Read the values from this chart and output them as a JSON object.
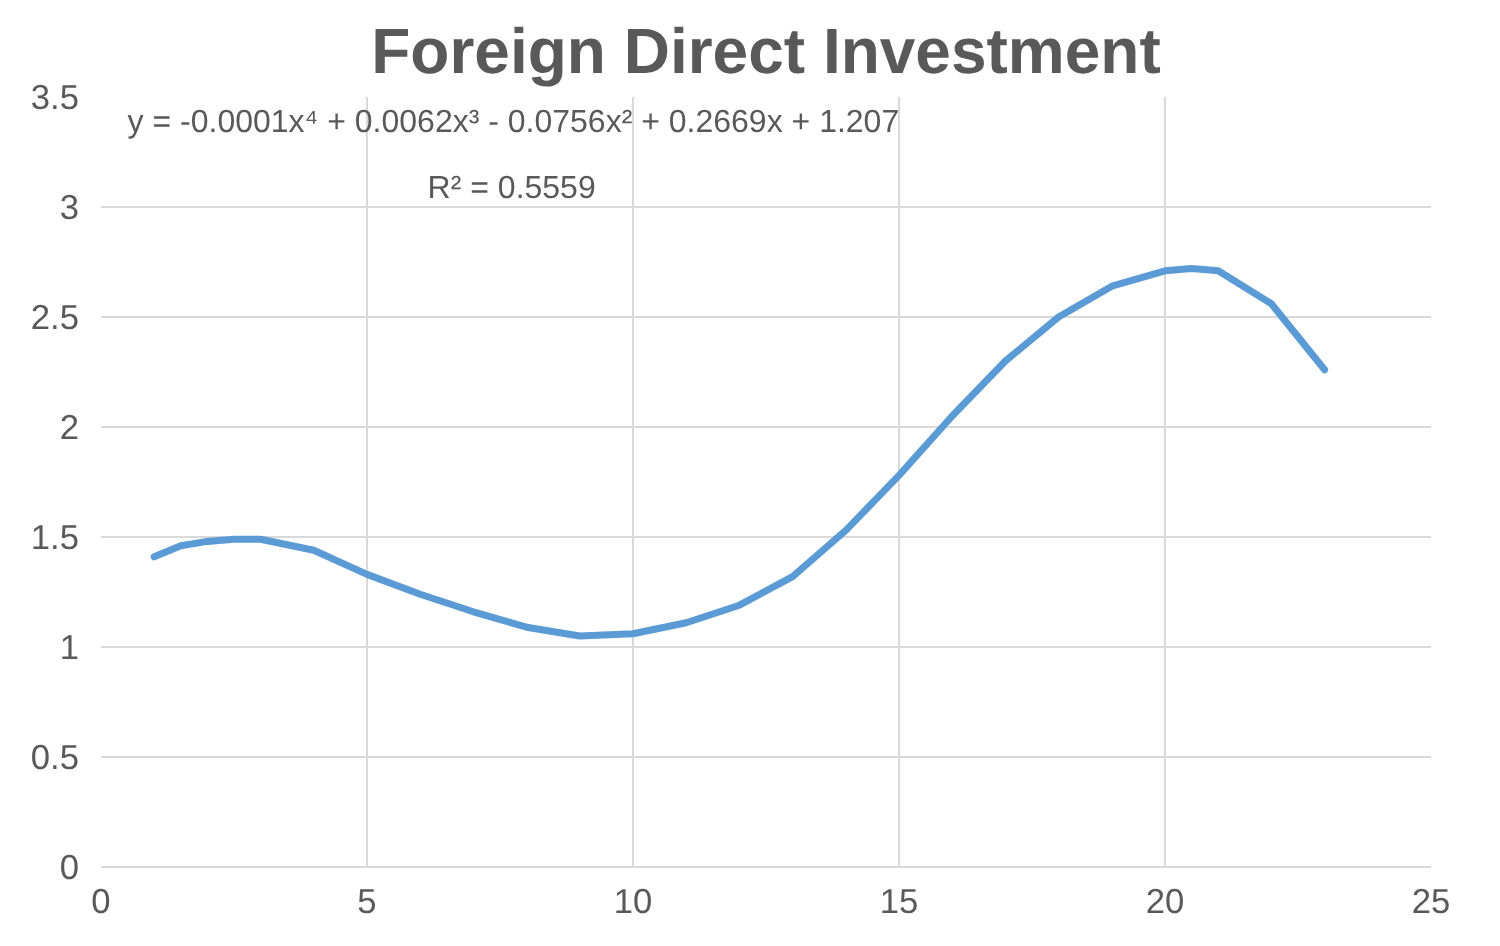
{
  "chart_data": {
    "type": "line",
    "title": "Foreign Direct Investment",
    "x": [
      1,
      1.5,
      2,
      2.5,
      3,
      4,
      5,
      6,
      7,
      8,
      9,
      10,
      11,
      12,
      13,
      14,
      15,
      16,
      17,
      18,
      19,
      20,
      20.5,
      21,
      22,
      23
    ],
    "series": [
      {
        "color": "#5b9bd5",
        "values": [
          1.41,
          1.46,
          1.48,
          1.49,
          1.49,
          1.44,
          1.33,
          1.24,
          1.16,
          1.09,
          1.05,
          1.06,
          1.11,
          1.19,
          1.32,
          1.53,
          1.78,
          2.05,
          2.3,
          2.5,
          2.64,
          2.71,
          2.72,
          2.71,
          2.56,
          2.26
        ]
      }
    ],
    "xlim": [
      0,
      25
    ],
    "xticks": [
      0,
      5,
      10,
      15,
      20,
      25
    ],
    "ylim": [
      0,
      3.5
    ],
    "yticks": [
      0,
      0.5,
      1,
      1.5,
      2,
      2.5,
      3,
      3.5
    ],
    "grid": true,
    "marker": "none",
    "line_style": "solid",
    "annotations": [
      "y = -0.0001x⁴ + 0.0062x³ - 0.0756x² + 0.2669x + 1.207",
      "R² = 0.5559"
    ]
  }
}
